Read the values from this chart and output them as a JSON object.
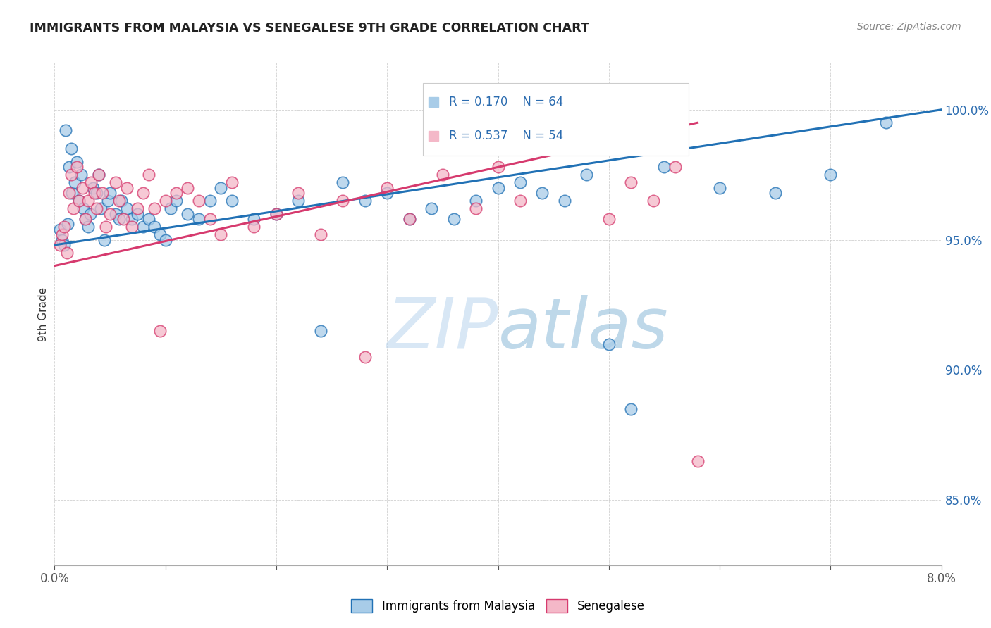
{
  "title": "IMMIGRANTS FROM MALAYSIA VS SENEGALESE 9TH GRADE CORRELATION CHART",
  "source": "Source: ZipAtlas.com",
  "ylabel": "9th Grade",
  "y_ticks": [
    85.0,
    90.0,
    95.0,
    100.0
  ],
  "y_tick_labels": [
    "85.0%",
    "90.0%",
    "95.0%",
    "100.0%"
  ],
  "x_range": [
    0.0,
    8.0
  ],
  "y_range": [
    82.5,
    101.8
  ],
  "legend1_r": "0.170",
  "legend1_n": "64",
  "legend2_r": "0.537",
  "legend2_n": "54",
  "color_blue": "#a8cce8",
  "color_pink": "#f4b8c8",
  "line_blue": "#2171b5",
  "line_pink": "#d63a6e",
  "watermark": "ZIPatlas",
  "malaysia_x": [
    0.05,
    0.07,
    0.09,
    0.1,
    0.12,
    0.13,
    0.15,
    0.16,
    0.18,
    0.2,
    0.22,
    0.24,
    0.26,
    0.28,
    0.3,
    0.32,
    0.35,
    0.38,
    0.4,
    0.42,
    0.45,
    0.48,
    0.5,
    0.55,
    0.58,
    0.6,
    0.65,
    0.7,
    0.75,
    0.8,
    0.85,
    0.9,
    0.95,
    1.0,
    1.05,
    1.1,
    1.2,
    1.3,
    1.4,
    1.5,
    1.6,
    1.8,
    2.0,
    2.2,
    2.4,
    2.6,
    2.8,
    3.0,
    3.2,
    3.4,
    3.6,
    3.8,
    4.0,
    4.2,
    4.4,
    4.6,
    4.8,
    5.0,
    5.2,
    5.5,
    6.0,
    6.5,
    7.0,
    7.5
  ],
  "malaysia_y": [
    95.4,
    95.0,
    94.8,
    99.2,
    95.6,
    97.8,
    98.5,
    96.8,
    97.2,
    98.0,
    96.5,
    97.5,
    96.2,
    95.8,
    95.5,
    96.0,
    97.0,
    96.8,
    97.5,
    96.2,
    95.0,
    96.5,
    96.8,
    96.0,
    95.8,
    96.5,
    96.2,
    95.8,
    96.0,
    95.5,
    95.8,
    95.5,
    95.2,
    95.0,
    96.2,
    96.5,
    96.0,
    95.8,
    96.5,
    97.0,
    96.5,
    95.8,
    96.0,
    96.5,
    91.5,
    97.2,
    96.5,
    96.8,
    95.8,
    96.2,
    95.8,
    96.5,
    97.0,
    97.2,
    96.8,
    96.5,
    97.5,
    91.0,
    88.5,
    97.8,
    97.0,
    96.8,
    97.5,
    99.5
  ],
  "senegalese_x": [
    0.05,
    0.07,
    0.09,
    0.11,
    0.13,
    0.15,
    0.17,
    0.2,
    0.22,
    0.25,
    0.28,
    0.3,
    0.33,
    0.36,
    0.38,
    0.4,
    0.43,
    0.46,
    0.5,
    0.55,
    0.58,
    0.62,
    0.65,
    0.7,
    0.75,
    0.8,
    0.85,
    0.9,
    0.95,
    1.0,
    1.1,
    1.2,
    1.3,
    1.4,
    1.5,
    1.6,
    1.8,
    2.0,
    2.2,
    2.4,
    2.6,
    2.8,
    3.0,
    3.2,
    3.5,
    3.8,
    4.0,
    4.2,
    4.6,
    5.0,
    5.2,
    5.4,
    5.6,
    5.8
  ],
  "senegalese_y": [
    94.8,
    95.2,
    95.5,
    94.5,
    96.8,
    97.5,
    96.2,
    97.8,
    96.5,
    97.0,
    95.8,
    96.5,
    97.2,
    96.8,
    96.2,
    97.5,
    96.8,
    95.5,
    96.0,
    97.2,
    96.5,
    95.8,
    97.0,
    95.5,
    96.2,
    96.8,
    97.5,
    96.2,
    91.5,
    96.5,
    96.8,
    97.0,
    96.5,
    95.8,
    95.2,
    97.2,
    95.5,
    96.0,
    96.8,
    95.2,
    96.5,
    90.5,
    97.0,
    95.8,
    97.5,
    96.2,
    97.8,
    96.5,
    99.2,
    95.8,
    97.2,
    96.5,
    97.8,
    86.5
  ],
  "blue_line_x": [
    0.0,
    8.0
  ],
  "blue_line_y": [
    94.8,
    100.0
  ],
  "pink_line_x": [
    0.0,
    5.8
  ],
  "pink_line_y": [
    94.0,
    99.5
  ]
}
